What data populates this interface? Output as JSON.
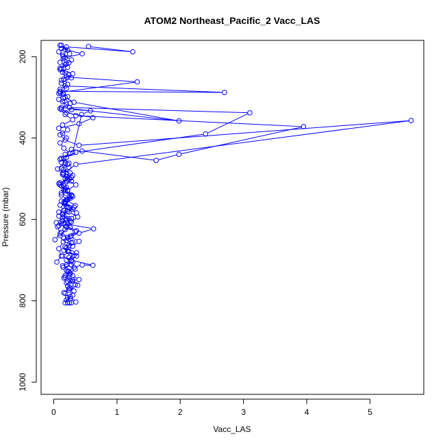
{
  "chart_data": {
    "type": "line",
    "title": "ATOM2 Northeast_Pacific_2 Vacc_LAS",
    "xlabel": "Vacc_LAS",
    "ylabel": "Pressure (mbar)",
    "xlim": [
      -0.2,
      5.85
    ],
    "ylim": [
      1030,
      160
    ],
    "y_inverted": true,
    "x_ticks": [
      0,
      1,
      2,
      3,
      4,
      5
    ],
    "y_ticks": [
      200,
      400,
      600,
      800,
      1000
    ],
    "grid": false,
    "legend": "none",
    "series_color": "#0000ff",
    "marker": "open-circle",
    "series": [
      {
        "name": "",
        "points": [
          [
            0.05,
            705
          ],
          [
            0.12,
            690
          ],
          [
            0.08,
            672
          ],
          [
            0.15,
            655
          ],
          [
            0.1,
            640
          ],
          [
            0.18,
            625
          ],
          [
            0.12,
            610
          ],
          [
            0.2,
            598
          ],
          [
            0.14,
            585
          ],
          [
            0.22,
            570
          ],
          [
            0.16,
            558
          ],
          [
            0.25,
            545
          ],
          [
            0.18,
            530
          ],
          [
            0.12,
            518
          ],
          [
            0.2,
            505
          ],
          [
            0.3,
            492
          ],
          [
            0.15,
            478
          ],
          [
            0.22,
            465
          ],
          [
            0.1,
            452
          ],
          [
            0.18,
            440
          ],
          [
            0.28,
            428
          ],
          [
            0.45,
            432
          ],
          [
            1.62,
            455
          ],
          [
            1.98,
            440
          ],
          [
            3.95,
            372
          ],
          [
            0.35,
            345
          ],
          [
            0.12,
            330
          ],
          [
            0.2,
            318
          ],
          [
            0.08,
            305
          ],
          [
            0.15,
            292
          ],
          [
            0.1,
            280
          ],
          [
            0.22,
            268
          ],
          [
            0.16,
            255
          ],
          [
            0.3,
            242
          ],
          [
            0.12,
            230
          ],
          [
            0.2,
            218
          ],
          [
            0.15,
            205
          ],
          [
            0.25,
            193
          ],
          [
            0.18,
            182
          ],
          [
            0.1,
            172
          ]
        ]
      },
      {
        "name": "",
        "points": [
          [
            0.02,
            650
          ],
          [
            0.1,
            635
          ],
          [
            0.06,
            618
          ],
          [
            0.14,
            604
          ],
          [
            0.08,
            592
          ],
          [
            0.16,
            578
          ],
          [
            0.1,
            565
          ],
          [
            0.22,
            552
          ],
          [
            0.12,
            540
          ],
          [
            0.18,
            525
          ],
          [
            0.08,
            512
          ],
          [
            0.25,
            500
          ],
          [
            0.15,
            488
          ],
          [
            0.35,
            465
          ],
          [
            5.65,
            357
          ],
          [
            0.4,
            418
          ],
          [
            0.18,
            405
          ],
          [
            0.1,
            392
          ],
          [
            0.22,
            380
          ],
          [
            0.14,
            368
          ],
          [
            0.3,
            355
          ],
          [
            0.18,
            342
          ],
          [
            0.1,
            328
          ],
          [
            0.26,
            315
          ],
          [
            0.15,
            302
          ],
          [
            0.08,
            290
          ],
          [
            0.2,
            278
          ],
          [
            0.12,
            265
          ],
          [
            0.28,
            252
          ],
          [
            0.18,
            240
          ],
          [
            0.1,
            228
          ],
          [
            0.24,
            215
          ],
          [
            0.15,
            200
          ],
          [
            0.08,
            188
          ],
          [
            0.2,
            176
          ],
          [
            1.25,
            188
          ],
          [
            0.55,
            175
          ]
        ]
      },
      {
        "name": "",
        "points": [
          [
            0.08,
            615
          ],
          [
            0.2,
            602
          ],
          [
            0.14,
            588
          ],
          [
            0.3,
            575
          ],
          [
            0.18,
            562
          ],
          [
            0.26,
            548
          ],
          [
            0.12,
            535
          ],
          [
            0.2,
            522
          ],
          [
            0.1,
            510
          ],
          [
            0.28,
            497
          ],
          [
            0.15,
            485
          ],
          [
            0.24,
            472
          ],
          [
            0.12,
            460
          ],
          [
            0.2,
            448
          ],
          [
            0.35,
            435
          ],
          [
            2.4,
            390
          ],
          [
            3.1,
            338
          ],
          [
            0.25,
            325
          ],
          [
            0.14,
            310
          ],
          [
            0.22,
            298
          ],
          [
            0.1,
            285
          ],
          [
            2.7,
            288
          ],
          [
            0.18,
            272
          ],
          [
            0.12,
            258
          ],
          [
            0.24,
            245
          ],
          [
            0.1,
            232
          ],
          [
            0.18,
            220
          ],
          [
            0.28,
            208
          ],
          [
            0.14,
            196
          ],
          [
            0.22,
            184
          ],
          [
            0.12,
            172
          ]
        ]
      },
      {
        "name": "",
        "points": [
          [
            0.04,
            608
          ],
          [
            0.14,
            596
          ],
          [
            0.08,
            582
          ],
          [
            0.2,
            568
          ],
          [
            0.12,
            555
          ],
          [
            0.28,
            542
          ],
          [
            0.16,
            528
          ],
          [
            0.1,
            515
          ],
          [
            0.22,
            502
          ],
          [
            0.14,
            490
          ],
          [
            0.06,
            476
          ],
          [
            0.18,
            462
          ],
          [
            0.12,
            450
          ],
          [
            0.26,
            438
          ],
          [
            0.16,
            425
          ],
          [
            0.1,
            412
          ],
          [
            0.2,
            400
          ],
          [
            0.14,
            388
          ],
          [
            0.08,
            376
          ],
          [
            0.4,
            365
          ],
          [
            0.62,
            350
          ],
          [
            0.2,
            338
          ],
          [
            0.12,
            325
          ],
          [
            1.98,
            358
          ],
          [
            0.32,
            312
          ],
          [
            0.18,
            300
          ],
          [
            0.1,
            288
          ],
          [
            1.32,
            262
          ],
          [
            0.2,
            250
          ],
          [
            0.14,
            238
          ],
          [
            0.22,
            226
          ],
          [
            0.1,
            214
          ],
          [
            0.18,
            202
          ],
          [
            0.45,
            193
          ],
          [
            0.12,
            180
          ]
        ]
      },
      {
        "name": "",
        "points": [
          [
            0.18,
            805
          ],
          [
            0.22,
            792
          ],
          [
            0.16,
            780
          ],
          [
            0.26,
            768
          ],
          [
            0.2,
            756
          ],
          [
            0.3,
            748
          ],
          [
            0.18,
            738
          ],
          [
            0.24,
            728
          ],
          [
            0.15,
            718
          ],
          [
            0.28,
            712
          ],
          [
            0.2,
            700
          ],
          [
            0.32,
            688
          ],
          [
            0.16,
            676
          ],
          [
            0.24,
            664
          ],
          [
            0.2,
            652
          ],
          [
            0.28,
            640
          ],
          [
            0.36,
            628
          ],
          [
            0.2,
            616
          ],
          [
            0.26,
            604
          ],
          [
            0.16,
            592
          ],
          [
            0.22,
            580
          ],
          [
            0.34,
            566
          ],
          [
            0.2,
            552
          ],
          [
            0.28,
            540
          ],
          [
            0.22,
            528
          ],
          [
            0.35,
            515
          ],
          [
            0.18,
            500
          ],
          [
            0.26,
            486
          ],
          [
            0.12,
            474
          ],
          [
            0.24,
            462
          ],
          [
            0.16,
            450
          ],
          [
            0.3,
            436
          ],
          [
            0.44,
            342
          ],
          [
            0.58,
            333
          ],
          [
            0.28,
            330
          ]
        ]
      },
      {
        "name": "",
        "points": [
          [
            0.22,
            805
          ],
          [
            0.26,
            795
          ],
          [
            0.18,
            782
          ],
          [
            0.24,
            770
          ],
          [
            0.34,
            760
          ],
          [
            0.22,
            752
          ],
          [
            0.16,
            744
          ],
          [
            0.26,
            735
          ],
          [
            0.2,
            725
          ],
          [
            0.14,
            714
          ],
          [
            0.3,
            705
          ],
          [
            0.24,
            694
          ],
          [
            0.36,
            682
          ],
          [
            0.2,
            670
          ],
          [
            0.28,
            658
          ],
          [
            0.16,
            646
          ],
          [
            0.4,
            634
          ],
          [
            0.63,
            623
          ],
          [
            0.22,
            612
          ],
          [
            0.28,
            598
          ],
          [
            0.36,
            584
          ],
          [
            0.24,
            570
          ],
          [
            0.18,
            556
          ],
          [
            0.3,
            544
          ],
          [
            0.22,
            530
          ],
          [
            0.16,
            518
          ],
          [
            0.28,
            506
          ],
          [
            0.2,
            494
          ]
        ]
      },
      {
        "name": "",
        "points": [
          [
            0.25,
            805
          ],
          [
            0.2,
            798
          ],
          [
            0.3,
            786
          ],
          [
            0.24,
            774
          ],
          [
            0.38,
            762
          ],
          [
            0.26,
            750
          ],
          [
            0.4,
            748
          ],
          [
            0.3,
            738
          ],
          [
            0.22,
            728
          ],
          [
            0.32,
            718
          ],
          [
            0.45,
            712
          ],
          [
            0.62,
            713
          ],
          [
            0.28,
            700
          ],
          [
            0.36,
            690
          ],
          [
            0.22,
            678
          ],
          [
            0.3,
            666
          ],
          [
            0.4,
            654
          ],
          [
            0.26,
            642
          ],
          [
            0.34,
            630
          ],
          [
            0.2,
            618
          ],
          [
            0.28,
            606
          ],
          [
            0.38,
            594
          ],
          [
            0.24,
            582
          ],
          [
            0.32,
            570
          ],
          [
            0.18,
            560
          ]
        ]
      },
      {
        "name": "",
        "points": [
          [
            0.28,
            805
          ],
          [
            0.35,
            803
          ],
          [
            0.26,
            790
          ],
          [
            0.32,
            776
          ],
          [
            0.22,
            764
          ],
          [
            0.3,
            752
          ],
          [
            0.18,
            742
          ],
          [
            0.26,
            732
          ],
          [
            0.34,
            722
          ],
          [
            0.2,
            712
          ],
          [
            0.28,
            702
          ],
          [
            0.14,
            690
          ],
          [
            0.24,
            680
          ],
          [
            0.18,
            668
          ],
          [
            0.3,
            656
          ],
          [
            0.22,
            644
          ],
          [
            0.12,
            632
          ],
          [
            0.26,
            620
          ],
          [
            0.16,
            610
          ],
          [
            0.24,
            598
          ]
        ]
      }
    ]
  }
}
